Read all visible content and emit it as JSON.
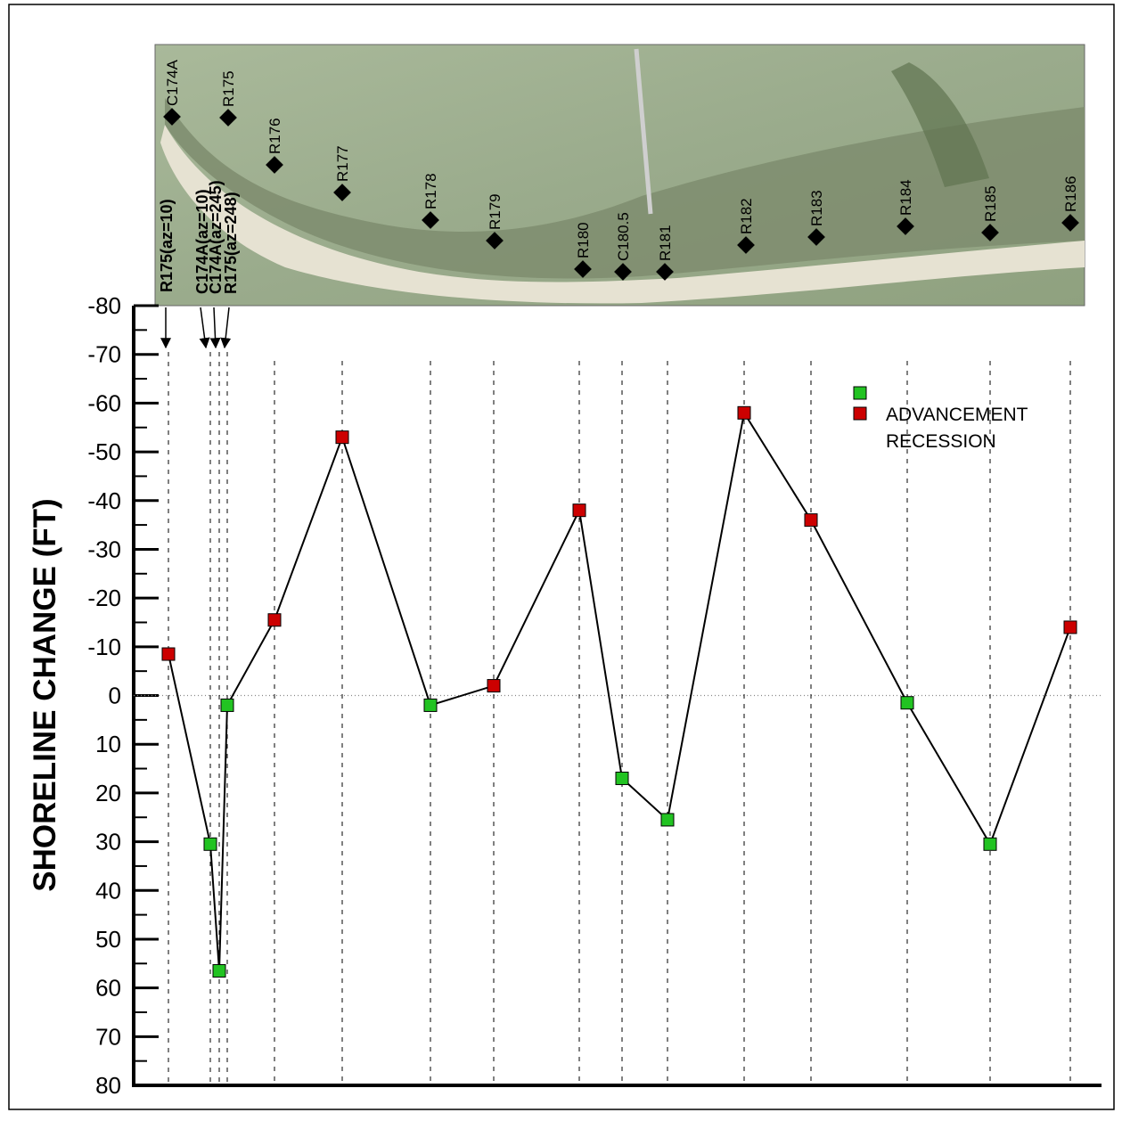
{
  "chart_data": {
    "type": "line",
    "y_label": "SHORELINE CHANGE (FT)",
    "categories": [
      "R175(az=10)",
      "C174A(az=10)",
      "C174A(az=245)",
      "R175(az=248)",
      "R176",
      "R177",
      "R178",
      "R179",
      "R180",
      "C180.5",
      "R181",
      "R182",
      "R183",
      "R184",
      "R185",
      "R186"
    ],
    "values": [
      -8.5,
      30.5,
      56.5,
      2,
      -15.5,
      -53,
      2,
      -2,
      -38,
      17,
      25.5,
      -58,
      -36,
      1.5,
      30.5,
      -14
    ],
    "marker_colors": [
      "#cc0000",
      "#22c322",
      "#22c322",
      "#22c322",
      "#cc0000",
      "#cc0000",
      "#22c322",
      "#cc0000",
      "#cc0000",
      "#22c322",
      "#22c322",
      "#cc0000",
      "#cc0000",
      "#22c322",
      "#22c322",
      "#cc0000"
    ],
    "line_color": "#000000",
    "map_labels": [
      "C174A",
      "R175"
    ],
    "legend": {
      "names": [
        "ADVANCEMENT",
        "RECESSION"
      ],
      "colors": [
        "#22c322",
        "#cc0000"
      ]
    },
    "ylim": [
      -80,
      80
    ],
    "y_inverted": true,
    "yticks": [
      -80,
      -70,
      -60,
      -50,
      -40,
      -30,
      -20,
      -10,
      0,
      10,
      20,
      30,
      40,
      50,
      60,
      70,
      80
    ],
    "yminor": [
      -75,
      -65,
      -55,
      -45,
      -35,
      -25,
      -15,
      -5,
      5,
      15,
      25,
      35,
      45,
      55,
      65,
      75
    ]
  }
}
